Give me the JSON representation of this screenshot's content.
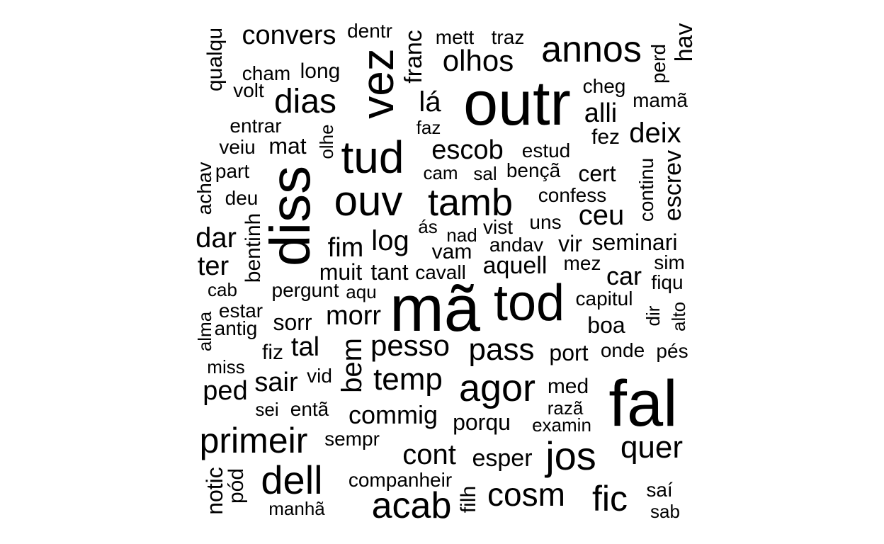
{
  "words": {
    "outr": "outr",
    "mã": "mã",
    "fal": "fal",
    "diss": "diss",
    "tod": "tod",
    "vez": "vez",
    "tud": "tud",
    "ouv": "ouv",
    "tamb": "tamb",
    "annos": "annos",
    "agor": "agor",
    "jos": "jos",
    "dell": "dell",
    "primeir": "primeir",
    "acab": "acab",
    "cosm": "cosm",
    "fic": "fic",
    "quer": "quer",
    "pass": "pass",
    "pesso": "pesso",
    "temp": "temp",
    "dias": "dias",
    "olhos": "olhos",
    "escob": "escob",
    "ceu": "ceu",
    "deix": "deix",
    "convers": "convers",
    "log": "log",
    "cont": "cont",
    "commig": "commig",
    "morr": "morr",
    "dar": "dar",
    "ter": "ter",
    "fim": "fim",
    "lá": "lá",
    "alli": "alli",
    "sair": "sair",
    "ped": "ped",
    "tal": "tal",
    "car": "car",
    "bem": "bem",
    "porqu": "porqu",
    "seminari": "seminari",
    "long": "long",
    "muit": "muit",
    "tant": "tant",
    "aquell": "aquell",
    "boa": "boa",
    "med": "med",
    "esper": "esper",
    "sorr": "sorr",
    "port": "port",
    "hav": "hav",
    "franc": "franc",
    "cham": "cham",
    "mat": "mat",
    "cert": "cert",
    "escrev": "escrev",
    "continu": "continu",
    "vam": "vam",
    "vir": "vir",
    "fez": "fez",
    "mamã": "mamã",
    "companheir": "companheir",
    "dentr": "dentr",
    "mett": "mett",
    "traz": "traz",
    "qualqu": "qualqu",
    "volt": "volt",
    "cheg": "cheg",
    "perd": "perd",
    "entrar": "entrar",
    "faz": "faz",
    "olhe": "olhe",
    "veiu": "veiu",
    "estud": "estud",
    "part": "part",
    "cam": "cam",
    "sal": "sal",
    "bença": "bençã",
    "achav": "achav",
    "deu": "deu",
    "confess": "confess",
    "bentinh": "bentinh",
    "uns": "uns",
    "as": "ás",
    "nad": "nad",
    "vist": "vist",
    "andav": "andav",
    "mez": "mez",
    "sim": "sim",
    "cavall": "cavall",
    "cab": "cab",
    "pergunt": "pergunt",
    "aqu": "aqu",
    "fiqu": "fiqu",
    "capitul": "capitul",
    "estar": "estar",
    "dir": "dir",
    "alto": "alto",
    "alma": "alma",
    "antig": "antig",
    "onde": "onde",
    "pes": "pés",
    "fiz": "fiz",
    "miss": "miss",
    "vid": "vid",
    "sei": "sei",
    "enta": "entã",
    "raza": "razã",
    "examin": "examin",
    "sempr": "sempr",
    "notic": "notic",
    "pod": "pód",
    "filh": "filh",
    "sai": "saí",
    "manha": "manhã",
    "sab": "sab"
  }
}
